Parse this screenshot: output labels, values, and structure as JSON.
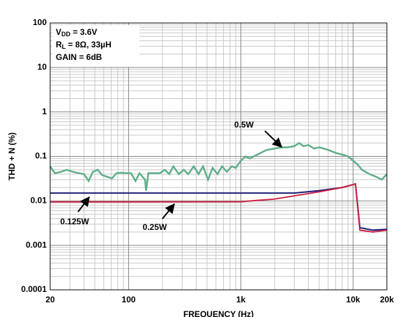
{
  "chart_data": {
    "type": "line",
    "xlabel": "FREQUENCY (Hz)",
    "ylabel": "THD + N (%)",
    "xscale": "log",
    "yscale": "log",
    "grid": true,
    "minor_grid": true,
    "xlim": [
      20,
      20000
    ],
    "ylim": [
      0.0001,
      100
    ],
    "xticks": [
      20,
      100,
      {
        "value": 1000,
        "label": "1k"
      },
      {
        "value": 10000,
        "label": "10k"
      },
      {
        "value": 20000,
        "label": "20k"
      }
    ],
    "yticks": [
      0.0001,
      0.001,
      0.01,
      0.1,
      1,
      10,
      100
    ],
    "conditions": [
      {
        "main": "V",
        "sub": "DD",
        "rest": " = 3.6V"
      },
      {
        "main": "R",
        "sub": "L",
        "rest": " = 8Ω, 33µH"
      },
      {
        "main": "GAIN = 6dB"
      }
    ],
    "series": [
      {
        "name": "0.5W",
        "color": "#5fae8a",
        "x": [
          20,
          22,
          25,
          28,
          32,
          36,
          40,
          44,
          48,
          53,
          58,
          64,
          71,
          78,
          86,
          95,
          105,
          115,
          125,
          140,
          143,
          150,
          170,
          190,
          210,
          230,
          250,
          280,
          310,
          340,
          380,
          420,
          460,
          510,
          560,
          620,
          680,
          750,
          830,
          900,
          1000,
          1100,
          1200,
          1300,
          1500,
          1700,
          2000,
          2300,
          2600,
          3000,
          3300,
          3600,
          4000,
          4500,
          5000,
          6000,
          7000,
          8000,
          9000,
          10000,
          11000,
          12000,
          14000,
          16000,
          18000,
          20000
        ],
        "values": [
          0.06,
          0.042,
          0.045,
          0.05,
          0.045,
          0.042,
          0.04,
          0.028,
          0.045,
          0.05,
          0.038,
          0.035,
          0.032,
          0.042,
          0.043,
          0.042,
          0.042,
          0.028,
          0.042,
          0.03,
          0.017,
          0.042,
          0.042,
          0.042,
          0.05,
          0.04,
          0.06,
          0.04,
          0.05,
          0.04,
          0.06,
          0.04,
          0.06,
          0.03,
          0.055,
          0.04,
          0.06,
          0.045,
          0.06,
          0.055,
          0.08,
          0.1,
          0.09,
          0.1,
          0.12,
          0.14,
          0.15,
          0.16,
          0.16,
          0.17,
          0.2,
          0.17,
          0.18,
          0.15,
          0.16,
          0.14,
          0.12,
          0.11,
          0.1,
          0.08,
          0.065,
          0.05,
          0.04,
          0.035,
          0.03,
          0.04
        ]
      },
      {
        "name": "0.125W",
        "color": "#1c1c78",
        "x": [
          20,
          100,
          1000,
          3000,
          5000,
          8000,
          10500,
          11500,
          15000,
          20000
        ],
        "values": [
          0.015,
          0.015,
          0.015,
          0.015,
          0.017,
          0.02,
          0.024,
          0.0025,
          0.0022,
          0.0023
        ]
      },
      {
        "name": "0.25W",
        "color": "#cc2244",
        "x": [
          20,
          100,
          1000,
          2000,
          3000,
          5000,
          8000,
          10500,
          11500,
          15000,
          20000
        ],
        "values": [
          0.0095,
          0.0095,
          0.0096,
          0.011,
          0.013,
          0.016,
          0.02,
          0.024,
          0.0022,
          0.002,
          0.0022
        ]
      }
    ]
  }
}
